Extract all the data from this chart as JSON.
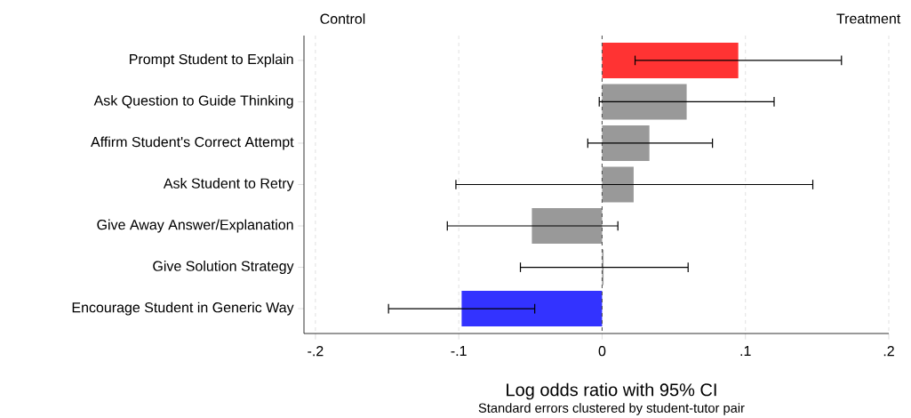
{
  "chart_data": {
    "type": "bar",
    "orientation": "horizontal",
    "categories": [
      "Prompt Student to Explain",
      "Ask Question to Guide Thinking",
      "Affirm Student's Correct Attempt",
      "Ask Student to Retry",
      "Give Away Answer/Explanation",
      "Give Solution Strategy",
      "Encourage Student in Generic Way"
    ],
    "values": [
      0.095,
      0.059,
      0.033,
      0.022,
      -0.049,
      0.001,
      -0.098
    ],
    "colors": [
      "#ff3333",
      "#999999",
      "#999999",
      "#999999",
      "#999999",
      "#999999",
      "#3333ff"
    ],
    "errors": [
      [
        0.023,
        0.167
      ],
      [
        -0.002,
        0.12
      ],
      [
        -0.01,
        0.077
      ],
      [
        -0.102,
        0.147
      ],
      [
        -0.108,
        0.011
      ],
      [
        -0.057,
        0.06
      ],
      [
        -0.149,
        -0.047
      ]
    ],
    "xlabel": "Log odds ratio with 95% CI",
    "xlim": [
      -0.208,
      0.2
    ],
    "xticks": [
      {
        "value": -0.2,
        "label": "-.2"
      },
      {
        "value": -0.1,
        "label": "-.1"
      },
      0,
      {
        "value": 0.1,
        "label": ".1"
      },
      {
        "value": 0.2,
        "label": ".2"
      }
    ],
    "grid": "x",
    "ref_lines": [
      {
        "axis": "x",
        "value": 0,
        "color": "#555555",
        "line_style": "dashed"
      }
    ],
    "annotations": [
      "Control",
      "Treatment",
      "Standard errors clustered by student-tutor pair"
    ]
  }
}
